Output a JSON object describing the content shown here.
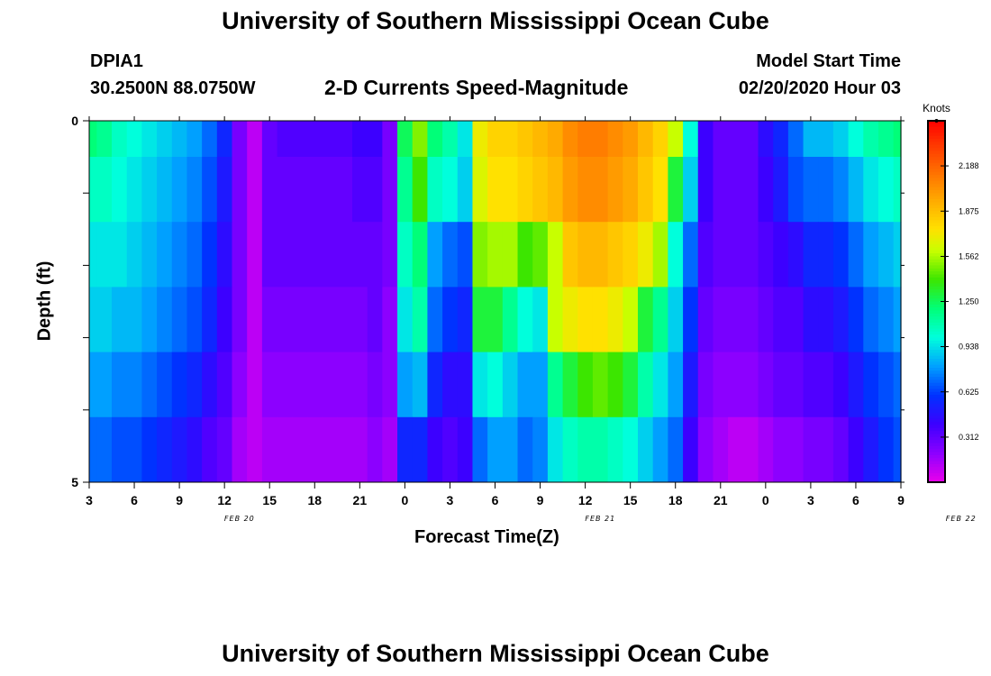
{
  "page": {
    "top_title": "University of Southern Mississippi Ocean Cube",
    "bottom_title": "University of Southern Mississippi Ocean Cube",
    "station_id": "DPIA1",
    "coordinates": "30.2500N 88.0750W",
    "subtitle": "2-D Currents Speed-Magnitude",
    "model_start_label": "Model Start Time",
    "model_start_value": "02/20/2020 Hour 03"
  },
  "chart_data": {
    "type": "heatmap",
    "title": "2-D Currents Speed-Magnitude",
    "xlabel": "Forecast Time(Z)",
    "ylabel": "Depth (ft)",
    "x_tick_labels": [
      "3",
      "6",
      "9",
      "12",
      "15",
      "18",
      "21",
      "0",
      "3",
      "6",
      "9",
      "12",
      "15",
      "18",
      "21",
      "0",
      "3",
      "6",
      "9"
    ],
    "date_labels": [
      {
        "text": "FEB 20",
        "at_hour": 13
      },
      {
        "text": "FEB 21",
        "at_hour": 37
      },
      {
        "text": "FEB 22",
        "at_hour": 61
      }
    ],
    "x_range_hours": [
      3,
      57
    ],
    "y_tick_labels": [
      "0",
      "5"
    ],
    "y_range": [
      0,
      5
    ],
    "colorbar": {
      "label": "Knots",
      "range": [
        0,
        2.5
      ],
      "ticks": [
        "0.312",
        "0.625",
        "0.938",
        "1.250",
        "1.562",
        "1.875",
        "2.188"
      ],
      "tick_values": [
        0.312,
        0.625,
        0.938,
        1.25,
        1.562,
        1.875,
        2.188
      ]
    },
    "depth_layers": [
      0,
      0.5,
      1.5,
      2.5,
      3.5,
      4.5
    ],
    "time_hours": [
      3,
      4,
      5,
      6,
      7,
      8,
      9,
      10,
      11,
      12,
      13,
      14,
      15,
      16,
      17,
      18,
      19,
      20,
      21,
      22,
      23,
      24,
      25,
      26,
      27,
      28,
      29,
      30,
      31,
      32,
      33,
      34,
      35,
      36,
      37,
      38,
      39,
      40,
      41,
      42,
      43,
      44,
      45,
      46,
      47,
      48,
      49,
      50,
      51,
      52,
      53,
      54,
      55,
      56,
      57
    ],
    "speed_knots_by_layer": [
      [
        1.2,
        1.15,
        1.05,
        1.0,
        0.95,
        0.9,
        0.85,
        0.8,
        0.7,
        0.55,
        0.25,
        0.1,
        0.3,
        0.35,
        0.35,
        0.35,
        0.35,
        0.35,
        0.4,
        0.4,
        0.25,
        1.25,
        1.5,
        1.2,
        1.1,
        0.95,
        1.7,
        1.8,
        1.8,
        1.85,
        1.9,
        1.95,
        2.05,
        2.1,
        2.1,
        2.05,
        2.0,
        1.9,
        1.8,
        1.6,
        1.0,
        0.4,
        0.3,
        0.3,
        0.3,
        0.45,
        0.55,
        0.7,
        0.85,
        0.85,
        0.9,
        1.0,
        1.1,
        1.15,
        1.2
      ],
      [
        1.05,
        1.05,
        1.0,
        0.95,
        0.9,
        0.85,
        0.8,
        0.75,
        0.65,
        0.5,
        0.25,
        0.1,
        0.3,
        0.3,
        0.3,
        0.3,
        0.3,
        0.3,
        0.35,
        0.35,
        0.25,
        1.15,
        1.4,
        1.05,
        1.0,
        0.9,
        1.65,
        1.75,
        1.75,
        1.8,
        1.85,
        1.9,
        2.0,
        2.05,
        2.05,
        2.0,
        1.95,
        1.85,
        1.75,
        1.3,
        0.9,
        0.4,
        0.3,
        0.3,
        0.3,
        0.4,
        0.5,
        0.65,
        0.7,
        0.7,
        0.75,
        0.85,
        0.95,
        1.0,
        1.05
      ],
      [
        0.95,
        0.95,
        0.95,
        0.9,
        0.85,
        0.8,
        0.75,
        0.7,
        0.6,
        0.45,
        0.25,
        0.1,
        0.3,
        0.3,
        0.3,
        0.3,
        0.3,
        0.3,
        0.3,
        0.3,
        0.25,
        1.05,
        1.2,
        0.8,
        0.7,
        0.65,
        1.5,
        1.55,
        1.55,
        1.4,
        1.45,
        1.6,
        1.85,
        1.9,
        1.9,
        1.85,
        1.8,
        1.7,
        1.55,
        1.0,
        0.7,
        0.35,
        0.3,
        0.3,
        0.3,
        0.35,
        0.4,
        0.45,
        0.55,
        0.55,
        0.6,
        0.7,
        0.8,
        0.85,
        0.9
      ],
      [
        0.9,
        0.9,
        0.85,
        0.85,
        0.8,
        0.75,
        0.7,
        0.65,
        0.55,
        0.4,
        0.25,
        0.1,
        0.25,
        0.25,
        0.25,
        0.25,
        0.25,
        0.25,
        0.25,
        0.3,
        0.2,
        0.95,
        1.1,
        0.7,
        0.6,
        0.55,
        1.3,
        1.3,
        1.15,
        1.0,
        0.95,
        1.6,
        1.7,
        1.75,
        1.75,
        1.7,
        1.6,
        1.3,
        1.15,
        0.9,
        0.6,
        0.3,
        0.25,
        0.25,
        0.25,
        0.3,
        0.35,
        0.35,
        0.45,
        0.45,
        0.5,
        0.6,
        0.7,
        0.75,
        0.8
      ],
      [
        0.8,
        0.8,
        0.75,
        0.75,
        0.7,
        0.65,
        0.6,
        0.55,
        0.45,
        0.35,
        0.2,
        0.1,
        0.2,
        0.2,
        0.2,
        0.2,
        0.2,
        0.2,
        0.2,
        0.25,
        0.2,
        0.8,
        0.85,
        0.55,
        0.45,
        0.45,
        0.95,
        1.0,
        0.9,
        0.8,
        0.8,
        1.15,
        1.3,
        1.4,
        1.45,
        1.4,
        1.3,
        1.1,
        0.95,
        0.8,
        0.5,
        0.25,
        0.2,
        0.2,
        0.2,
        0.25,
        0.3,
        0.3,
        0.35,
        0.35,
        0.4,
        0.5,
        0.6,
        0.65,
        0.7
      ],
      [
        0.7,
        0.7,
        0.65,
        0.65,
        0.6,
        0.55,
        0.5,
        0.45,
        0.35,
        0.3,
        0.15,
        0.1,
        0.15,
        0.15,
        0.15,
        0.15,
        0.15,
        0.15,
        0.15,
        0.2,
        0.15,
        0.55,
        0.55,
        0.4,
        0.35,
        0.4,
        0.7,
        0.8,
        0.8,
        0.7,
        0.75,
        0.95,
        1.05,
        1.1,
        1.1,
        1.05,
        1.0,
        0.9,
        0.8,
        0.7,
        0.4,
        0.2,
        0.15,
        0.1,
        0.1,
        0.15,
        0.2,
        0.2,
        0.25,
        0.25,
        0.3,
        0.4,
        0.5,
        0.6,
        0.65
      ]
    ]
  }
}
